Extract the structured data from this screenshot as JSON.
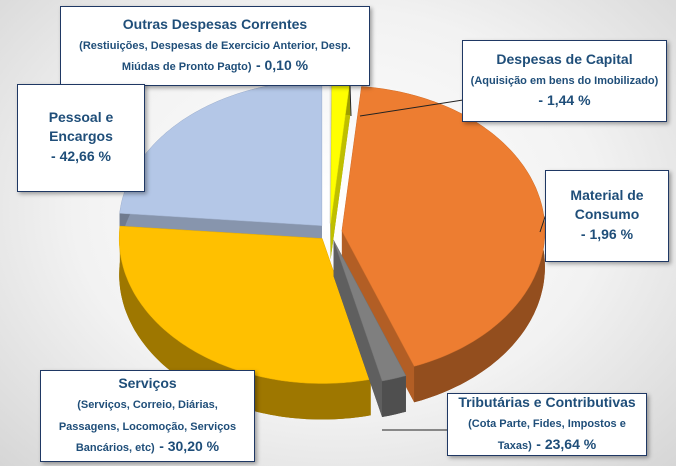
{
  "chart_data": {
    "type": "pie",
    "categories": [
      "Outras Despesas Correntes",
      "Despesas de Capital",
      "Pessoal e Encargos",
      "Material de Consumo",
      "Serviços",
      "Tributárias e Contributivas"
    ],
    "descriptions": [
      "(Restiuições, Despesas de Exercicio Anterior, Desp. Miúdas de Pronto Pagto)",
      "(Aquisição em bens do Imobilizado)",
      null,
      null,
      "(Serviços, Correio, Diárias, Passagens, Locomoção, Serviços Bancários, etc)",
      "(Cota Parte, Fides, Impostos e Taxas)"
    ],
    "values": [
      0.1,
      1.44,
      42.66,
      1.96,
      30.2,
      23.64
    ],
    "value_labels": [
      "- 0,10 %",
      "- 1,44 %",
      "- 42,66 %",
      "- 1,96 %",
      "- 30,20 %",
      "- 23,64 %"
    ],
    "colors": [
      "#e8e8e8",
      "#ffff00",
      "#ed7d31",
      "#7f7f7f",
      "#ffc000",
      "#b4c7e7"
    ]
  }
}
